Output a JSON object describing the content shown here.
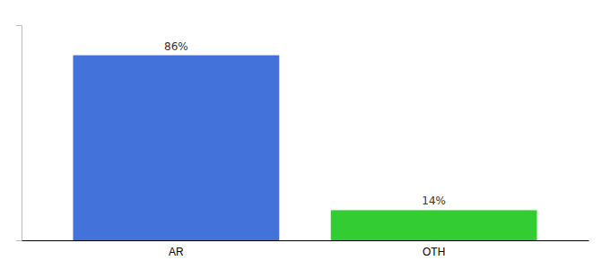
{
  "chart_data": {
    "type": "bar",
    "categories": [
      "AR",
      "OTH"
    ],
    "values": [
      86,
      14
    ],
    "value_labels": [
      "86%",
      "14%"
    ],
    "colors": [
      "#4472db",
      "#33cc33"
    ],
    "ylim": [
      0,
      100
    ],
    "data_labels": true,
    "grid": false,
    "tick_labels": "x"
  }
}
